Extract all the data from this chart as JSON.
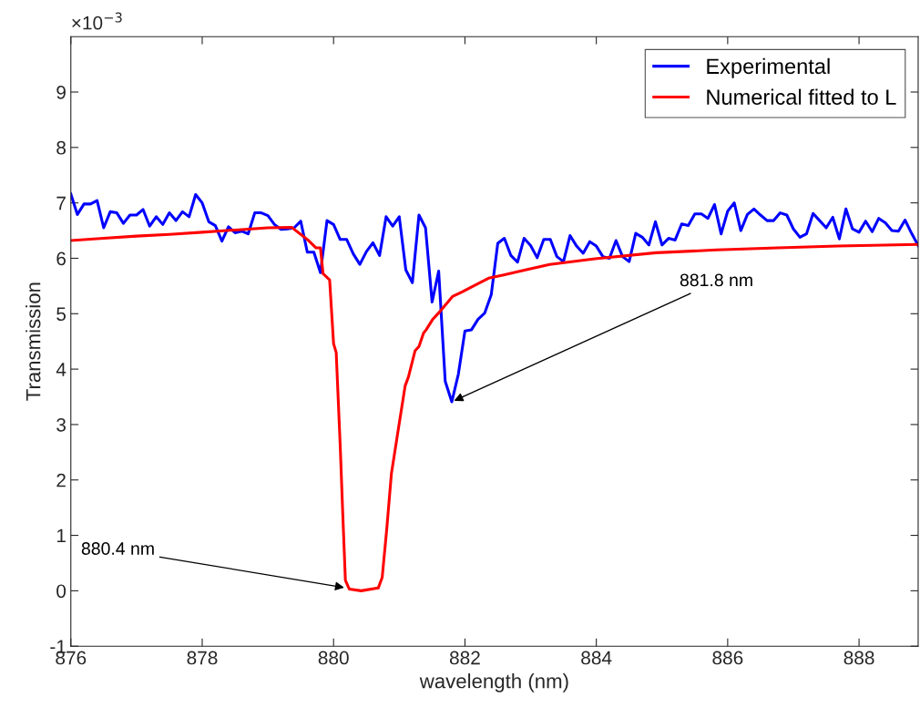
{
  "chart_data": {
    "type": "line",
    "xlabel": "wavelength (nm)",
    "ylabel": "Transmission",
    "xlim": [
      876,
      888.9
    ],
    "xticks": [
      876,
      878,
      880,
      882,
      884,
      886,
      888
    ],
    "ylim": [
      -1,
      10
    ],
    "yticks": [
      -1,
      0,
      1,
      2,
      3,
      4,
      5,
      6,
      7,
      8,
      9
    ],
    "grid": false,
    "legend": "top right",
    "marker": "none",
    "line_style": "solid",
    "series": [
      {
        "name": "Experimental",
        "color": "#0000ff",
        "x": [
          876.0,
          876.1,
          876.2,
          876.3,
          876.4,
          876.5,
          876.6,
          876.7,
          876.8,
          876.9,
          877.0,
          877.1,
          877.2,
          877.3,
          877.4,
          877.5,
          877.6,
          877.7,
          877.8,
          877.9,
          878.0,
          878.1,
          878.2,
          878.3,
          878.4,
          878.5,
          878.6,
          878.7,
          878.8,
          878.9,
          879.0,
          879.1,
          879.2,
          879.3,
          879.4,
          879.5,
          879.6,
          879.7,
          879.8,
          879.9,
          880.0,
          880.1,
          880.2,
          880.3,
          880.4,
          880.5,
          880.6,
          880.7,
          880.8,
          880.9,
          881.0,
          881.1,
          881.2,
          881.3,
          881.4,
          881.5,
          881.6,
          881.7,
          881.8,
          881.9,
          882.0,
          882.1,
          882.2,
          882.3,
          882.4,
          882.5,
          882.6,
          882.7,
          882.8,
          882.9,
          883.0,
          883.1,
          883.2,
          883.3,
          883.4,
          883.5,
          883.6,
          883.7,
          883.8,
          883.9,
          884.0,
          884.1,
          884.2,
          884.3,
          884.4,
          884.5,
          884.6,
          884.7,
          884.8,
          884.9,
          885.0,
          885.1,
          885.2,
          885.3,
          885.4,
          885.5,
          885.6,
          885.7,
          885.8,
          885.9,
          886.0,
          886.1,
          886.2,
          886.3,
          886.4,
          886.5,
          886.6,
          886.7,
          886.8,
          886.9,
          887.0,
          887.1,
          887.2,
          887.3,
          887.4,
          887.5,
          887.6,
          887.7,
          887.8,
          887.9,
          888.0,
          888.1,
          888.2,
          888.3,
          888.4,
          888.5,
          888.6,
          888.7,
          888.8,
          888.9
        ],
        "values": [
          7.16,
          6.79,
          6.98,
          6.98,
          7.04,
          6.55,
          6.84,
          6.82,
          6.63,
          6.78,
          6.78,
          6.88,
          6.58,
          6.75,
          6.61,
          6.82,
          6.68,
          6.84,
          6.75,
          7.15,
          7.0,
          6.66,
          6.59,
          6.31,
          6.57,
          6.46,
          6.49,
          6.44,
          6.82,
          6.82,
          6.77,
          6.61,
          6.52,
          6.53,
          6.55,
          6.67,
          6.11,
          6.11,
          5.74,
          6.68,
          6.61,
          6.34,
          6.34,
          6.08,
          5.89,
          6.12,
          6.28,
          6.05,
          6.75,
          6.58,
          6.75,
          5.79,
          5.56,
          6.78,
          6.55,
          5.21,
          5.77,
          3.78,
          3.41,
          3.91,
          4.69,
          4.71,
          4.9,
          5.01,
          5.34,
          6.27,
          6.36,
          6.05,
          5.93,
          6.36,
          6.23,
          6.01,
          6.34,
          6.34,
          6.03,
          5.94,
          6.41,
          6.22,
          6.09,
          6.3,
          6.22,
          6.03,
          6.0,
          6.32,
          6.03,
          5.94,
          6.45,
          6.38,
          6.24,
          6.66,
          6.24,
          6.36,
          6.33,
          6.62,
          6.59,
          6.8,
          6.8,
          6.72,
          6.97,
          6.44,
          6.85,
          7.0,
          6.5,
          6.79,
          6.89,
          6.78,
          6.68,
          6.68,
          6.82,
          6.78,
          6.53,
          6.38,
          6.44,
          6.81,
          6.68,
          6.55,
          6.74,
          6.35,
          6.89,
          6.53,
          6.47,
          6.67,
          6.48,
          6.72,
          6.64,
          6.5,
          6.49,
          6.69,
          6.45,
          6.23
        ]
      },
      {
        "name": "Numerical fitted to L",
        "color": "#ff0000",
        "x": [
          876.0,
          876.5,
          877.0,
          877.5,
          878.0,
          878.5,
          879.0,
          879.36,
          879.61,
          879.73,
          879.8,
          879.84,
          879.94,
          880.0,
          880.04,
          880.1,
          880.14,
          880.18,
          880.24,
          880.42,
          880.68,
          880.74,
          880.81,
          880.88,
          880.98,
          881.09,
          881.14,
          881.24,
          881.3,
          881.37,
          881.41,
          881.51,
          881.62,
          881.72,
          881.81,
          881.95,
          882.13,
          882.36,
          882.59,
          882.92,
          883.29,
          883.98,
          884.91,
          885.83,
          886.76,
          887.68,
          888.9
        ],
        "values": [
          6.32,
          6.36,
          6.4,
          6.43,
          6.47,
          6.51,
          6.55,
          6.56,
          6.33,
          6.19,
          6.19,
          5.72,
          5.61,
          4.46,
          4.3,
          2.65,
          1.39,
          0.19,
          0.03,
          0.0,
          0.05,
          0.24,
          1.12,
          2.11,
          2.87,
          3.7,
          3.86,
          4.33,
          4.41,
          4.65,
          4.71,
          4.9,
          5.04,
          5.18,
          5.31,
          5.39,
          5.5,
          5.64,
          5.7,
          5.79,
          5.89,
          5.99,
          6.1,
          6.15,
          6.19,
          6.22,
          6.25
        ]
      }
    ],
    "annotations": [
      "×10$^{−3}$",
      {
        "text": "881.8 nm",
        "x": 881.8,
        "y": 3.41
      },
      {
        "text": "880.4 nm",
        "x": 880.2,
        "y": 0.05
      }
    ]
  }
}
